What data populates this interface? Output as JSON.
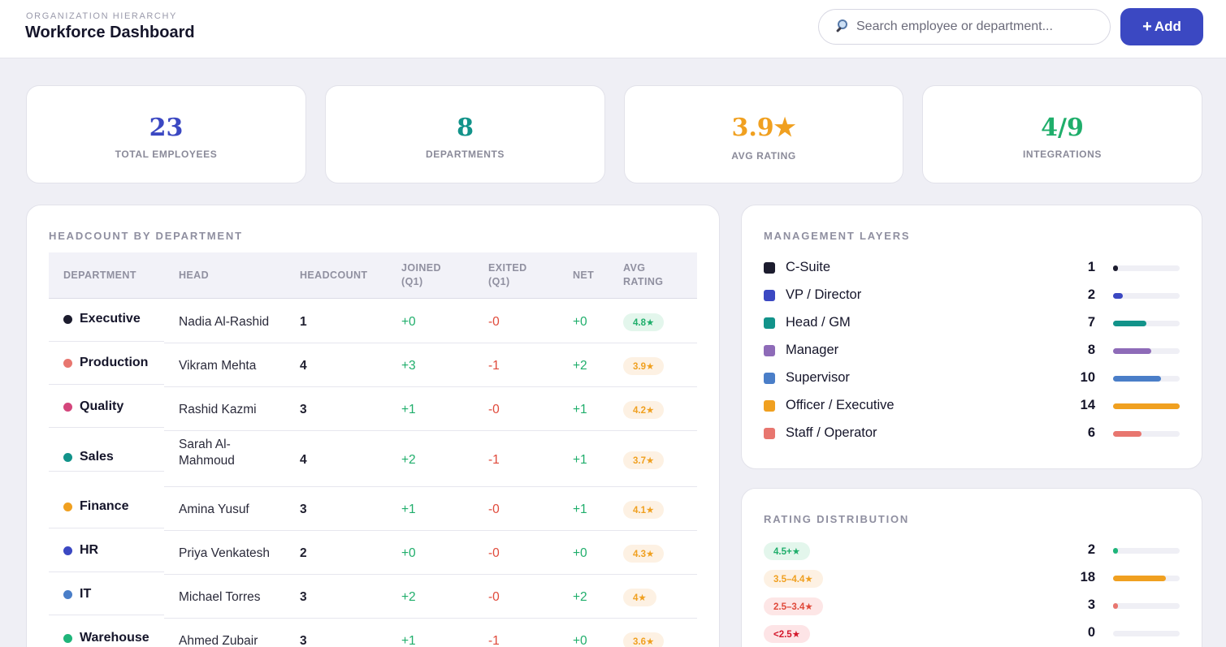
{
  "header": {
    "eyebrow": "ORGANIZATION HIERARCHY",
    "title": "Workforce Dashboard",
    "search_placeholder": "Search employee or department...",
    "add_label": "Add",
    "add_icon": "+"
  },
  "kpis": [
    {
      "value": "23",
      "label": "TOTAL EMPLOYEES",
      "color": "#3b48c2"
    },
    {
      "value": "8",
      "label": "DEPARTMENTS",
      "color": "#12938a"
    },
    {
      "value": "3.9★",
      "label": "AVG RATING",
      "color": "#f0a020"
    },
    {
      "value": "4/9",
      "label": "INTEGRATIONS",
      "color": "#1fae6b"
    }
  ],
  "headcount": {
    "title": "HEADCOUNT BY DEPARTMENT",
    "columns": [
      "DEPARTMENT",
      "HEAD",
      "HEADCOUNT",
      "JOINED (Q1)",
      "EXITED (Q1)",
      "NET",
      "AVG RATING"
    ],
    "rows": [
      {
        "dept": "Executive",
        "dot": "#1c1c2e",
        "head": "Nadia Al-Rashid",
        "headcount": "1",
        "joined": "+0",
        "exited": "-0",
        "net": "+0",
        "rating": "4.8★",
        "tone": "green"
      },
      {
        "dept": "Production",
        "dot": "#e8766f",
        "head": "Vikram Mehta",
        "headcount": "4",
        "joined": "+3",
        "exited": "-1",
        "net": "+2",
        "rating": "3.9★",
        "tone": "orange"
      },
      {
        "dept": "Quality",
        "dot": "#d4467c",
        "head": "Rashid Kazmi",
        "headcount": "3",
        "joined": "+1",
        "exited": "-0",
        "net": "+1",
        "rating": "4.2★",
        "tone": "orange"
      },
      {
        "dept": "Sales",
        "dot": "#12938a",
        "head": "Sarah Al-Mahmoud",
        "headcount": "4",
        "joined": "+2",
        "exited": "-1",
        "net": "+1",
        "rating": "3.7★",
        "tone": "orange"
      },
      {
        "dept": "Finance",
        "dot": "#f0a020",
        "head": "Amina Yusuf",
        "headcount": "3",
        "joined": "+1",
        "exited": "-0",
        "net": "+1",
        "rating": "4.1★",
        "tone": "orange"
      },
      {
        "dept": "HR",
        "dot": "#3b48c2",
        "head": "Priya Venkatesh",
        "headcount": "2",
        "joined": "+0",
        "exited": "-0",
        "net": "+0",
        "rating": "4.3★",
        "tone": "orange"
      },
      {
        "dept": "IT",
        "dot": "#4a7ec8",
        "head": "Michael Torres",
        "headcount": "3",
        "joined": "+2",
        "exited": "-0",
        "net": "+2",
        "rating": "4★",
        "tone": "orange"
      },
      {
        "dept": "Warehouse",
        "dot": "#1fb57a",
        "head": "Ahmed Zubair",
        "headcount": "3",
        "joined": "+1",
        "exited": "-1",
        "net": "+0",
        "rating": "3.6★",
        "tone": "orange"
      }
    ]
  },
  "management": {
    "title": "MANAGEMENT LAYERS",
    "max": 14,
    "layers": [
      {
        "label": "C-Suite",
        "count": 1,
        "color": "#1c1c2e"
      },
      {
        "label": "VP / Director",
        "count": 2,
        "color": "#3b48c2"
      },
      {
        "label": "Head / GM",
        "count": 7,
        "color": "#12938a"
      },
      {
        "label": "Manager",
        "count": 8,
        "color": "#8e6bb8"
      },
      {
        "label": "Supervisor",
        "count": 10,
        "color": "#4a7ec8"
      },
      {
        "label": "Officer / Executive",
        "count": 14,
        "color": "#f0a020"
      },
      {
        "label": "Staff / Operator",
        "count": 6,
        "color": "#e8766f"
      }
    ]
  },
  "ratings": {
    "title": "RATING DISTRIBUTION",
    "max": 18,
    "buckets": [
      {
        "label": "4.5+★",
        "count": 2,
        "color": "#1fb57a",
        "tone": "green"
      },
      {
        "label": "3.5–4.4★",
        "count": 18,
        "color": "#f0a020",
        "tone": "orange"
      },
      {
        "label": "2.5–3.4★",
        "count": 3,
        "color": "#e8766f",
        "tone": "red"
      },
      {
        "label": "<2.5★",
        "count": 0,
        "color": "#d4182c",
        "tone": "dred"
      }
    ]
  }
}
